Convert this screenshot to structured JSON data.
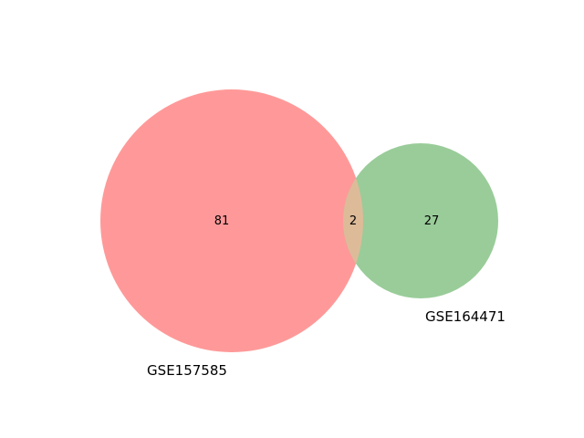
{
  "venn": {
    "sets": [
      {
        "name": "GSE157585",
        "color": "#ff9999"
      },
      {
        "name": "GSE164471",
        "color": "#99cc99"
      }
    ],
    "intersection_color": "#ddbb99",
    "regions": {
      "only_a": "81",
      "both": "2",
      "only_b": "27"
    }
  }
}
